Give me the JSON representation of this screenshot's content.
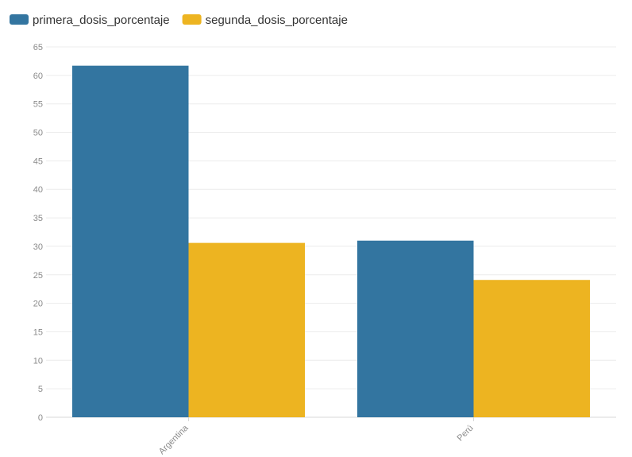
{
  "chart_data": {
    "type": "bar",
    "categories": [
      "Argentina",
      "Perú"
    ],
    "series": [
      {
        "name": "primera_dosis_porcentaje",
        "values": [
          61.7,
          31.0
        ],
        "color": "#3375a0"
      },
      {
        "name": "segunda_dosis_porcentaje",
        "values": [
          30.6,
          24.1
        ],
        "color": "#edb421"
      }
    ],
    "ylim": [
      0,
      65
    ],
    "yticks": [
      0,
      5,
      10,
      15,
      20,
      25,
      30,
      35,
      40,
      45,
      50,
      55,
      60,
      65
    ],
    "grid": true,
    "legend_position": "top-left",
    "xlabel": "",
    "ylabel": "",
    "title": ""
  }
}
